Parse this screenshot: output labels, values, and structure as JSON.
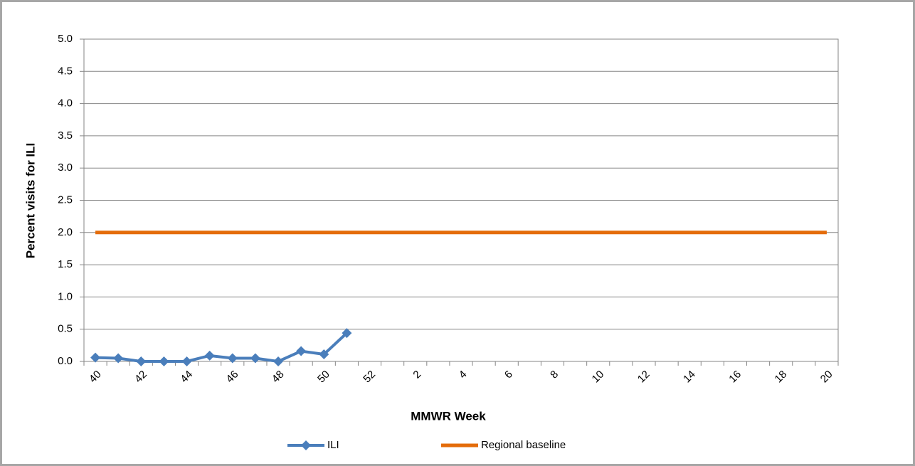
{
  "chart_data": {
    "type": "line",
    "y_label": "Percent visits for ILI",
    "x_label": "MMWR Week",
    "categories": [
      "40",
      null,
      "42",
      null,
      "44",
      null,
      "46",
      null,
      "48",
      null,
      "50",
      null,
      "52",
      null,
      "2",
      null,
      "4",
      null,
      "6",
      null,
      "8",
      null,
      "10",
      null,
      "12",
      null,
      "14",
      null,
      "16",
      null,
      "18",
      null,
      "20"
    ],
    "series": [
      {
        "name": "ILI",
        "color": "#4a7ebb",
        "marker": "diamond",
        "values": [
          0.06,
          0.05,
          0.0,
          0.0,
          0.0,
          0.09,
          0.05,
          0.05,
          0.0,
          0.16,
          0.11,
          0.44,
          null,
          null,
          null,
          null,
          null,
          null,
          null,
          null,
          null,
          null,
          null,
          null,
          null,
          null,
          null,
          null,
          null,
          null,
          null,
          null,
          null
        ]
      },
      {
        "name": "Regional baseline",
        "color": "#e46c0a",
        "marker": "none",
        "values": [
          2.0,
          2.0,
          2.0,
          2.0,
          2.0,
          2.0,
          2.0,
          2.0,
          2.0,
          2.0,
          2.0,
          2.0,
          2.0,
          2.0,
          2.0,
          2.0,
          2.0,
          2.0,
          2.0,
          2.0,
          2.0,
          2.0,
          2.0,
          2.0,
          2.0,
          2.0,
          2.0,
          2.0,
          2.0,
          2.0,
          2.0,
          2.0,
          2.0
        ]
      }
    ],
    "ylim": [
      0,
      5
    ],
    "yticks": [
      {
        "value": 0,
        "label": "0.0"
      },
      0.5,
      {
        "value": 1,
        "label": "1.0"
      },
      1.5,
      {
        "value": 2,
        "label": "2.0"
      },
      2.5,
      {
        "value": 3,
        "label": "3.0"
      },
      3.5,
      {
        "value": 4,
        "label": "4.0"
      },
      4.5,
      {
        "value": 5,
        "label": "5.0"
      }
    ],
    "grid": true,
    "legend": "bottom"
  }
}
